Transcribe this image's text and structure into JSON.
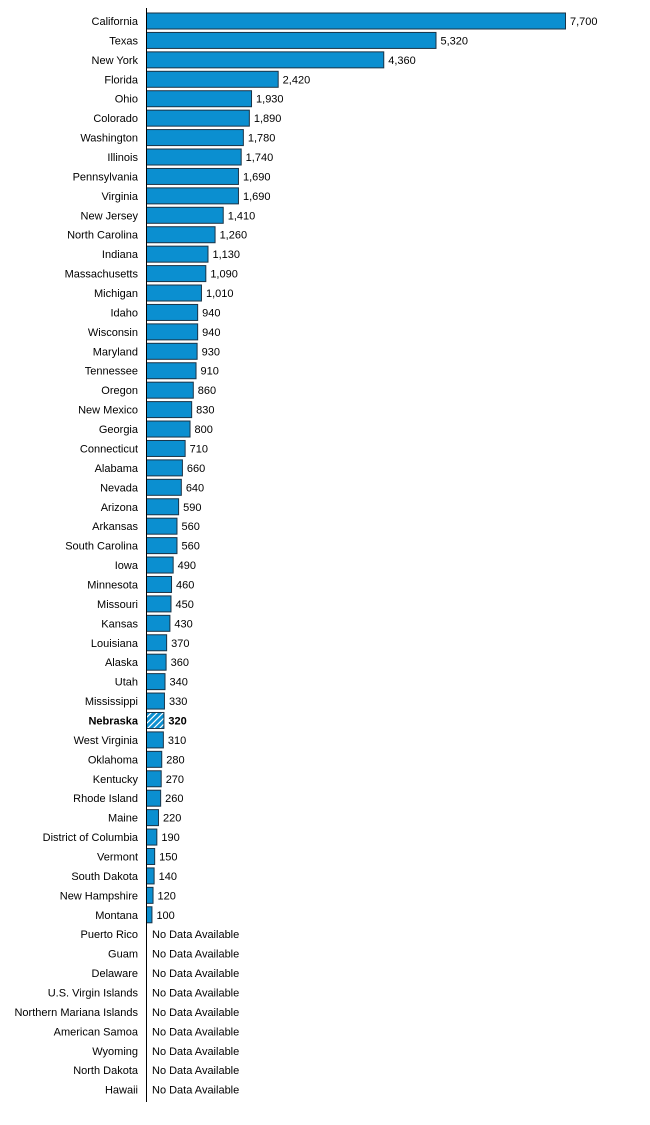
{
  "chart_data": {
    "type": "bar",
    "orientation": "horizontal",
    "highlighted_category": "Nebraska",
    "no_data_label": "No Data Available",
    "colors": {
      "bar": "#0b8fd0",
      "bar_outline": "#1a3346",
      "highlight_hatch": "#ffffff",
      "axis": "#000000"
    },
    "xlim": [
      0,
      7700
    ],
    "categories": [
      "California",
      "Texas",
      "New York",
      "Florida",
      "Ohio",
      "Colorado",
      "Washington",
      "Illinois",
      "Pennsylvania",
      "Virginia",
      "New Jersey",
      "North Carolina",
      "Indiana",
      "Massachusetts",
      "Michigan",
      "Idaho",
      "Wisconsin",
      "Maryland",
      "Tennessee",
      "Oregon",
      "New Mexico",
      "Georgia",
      "Connecticut",
      "Alabama",
      "Nevada",
      "Arizona",
      "Arkansas",
      "South Carolina",
      "Iowa",
      "Minnesota",
      "Missouri",
      "Kansas",
      "Louisiana",
      "Alaska",
      "Utah",
      "Mississippi",
      "Nebraska",
      "West Virginia",
      "Oklahoma",
      "Kentucky",
      "Rhode Island",
      "Maine",
      "District of Columbia",
      "Vermont",
      "South Dakota",
      "New Hampshire",
      "Montana",
      "Puerto Rico",
      "Guam",
      "Delaware",
      "U.S. Virgin Islands",
      "Northern Mariana Islands",
      "American Samoa",
      "Wyoming",
      "North Dakota",
      "Hawaii"
    ],
    "values": [
      7700,
      5320,
      4360,
      2420,
      1930,
      1890,
      1780,
      1740,
      1690,
      1690,
      1410,
      1260,
      1130,
      1090,
      1010,
      940,
      940,
      930,
      910,
      860,
      830,
      800,
      710,
      660,
      640,
      590,
      560,
      560,
      490,
      460,
      450,
      430,
      370,
      360,
      340,
      330,
      320,
      310,
      280,
      270,
      260,
      220,
      190,
      150,
      140,
      120,
      100,
      null,
      null,
      null,
      null,
      null,
      null,
      null,
      null,
      null
    ],
    "value_labels": [
      "7,700",
      "5,320",
      "4,360",
      "2,420",
      "1,930",
      "1,890",
      "1,780",
      "1,740",
      "1,690",
      "1,690",
      "1,410",
      "1,260",
      "1,130",
      "1,090",
      "1,010",
      "940",
      "940",
      "930",
      "910",
      "860",
      "830",
      "800",
      "710",
      "660",
      "640",
      "590",
      "560",
      "560",
      "490",
      "460",
      "450",
      "430",
      "370",
      "360",
      "340",
      "330",
      "320",
      "310",
      "280",
      "270",
      "260",
      "220",
      "190",
      "150",
      "140",
      "120",
      "100",
      "No Data Available",
      "No Data Available",
      "No Data Available",
      "No Data Available",
      "No Data Available",
      "No Data Available",
      "No Data Available",
      "No Data Available",
      "No Data Available"
    ]
  }
}
